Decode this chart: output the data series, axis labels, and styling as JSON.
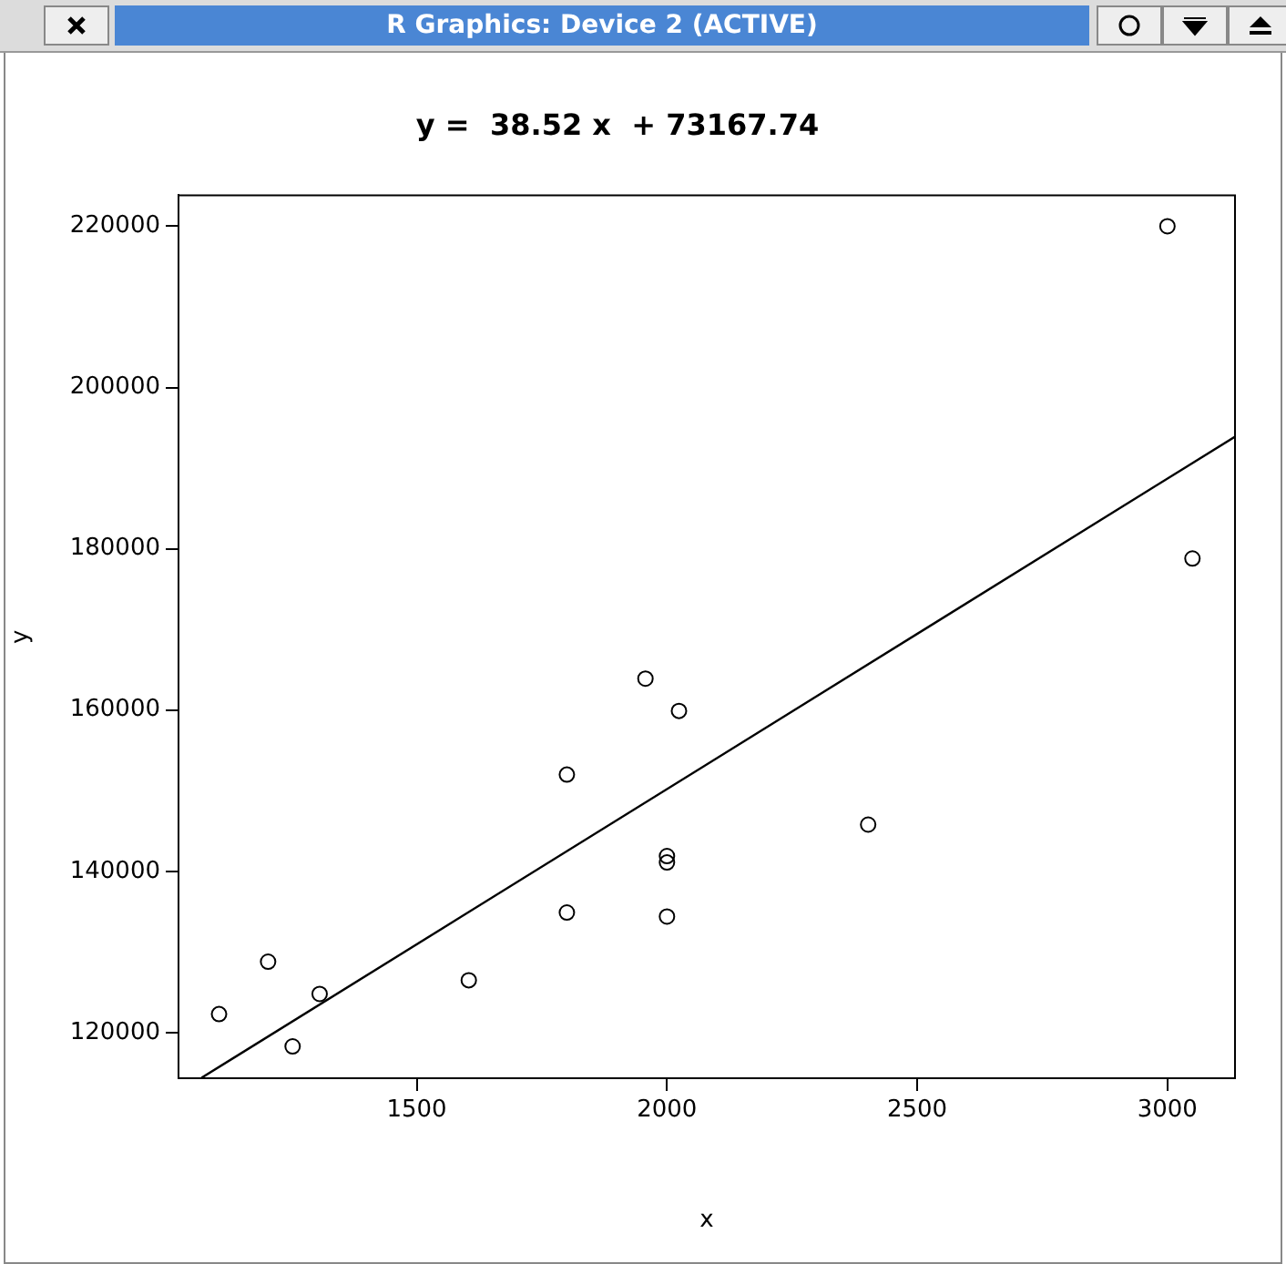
{
  "chart_data": {
    "type": "scatter",
    "title": "y =  38.52 x  + 73167.74",
    "xlabel": "x",
    "ylabel": "y",
    "annotations": [
      "R Graphics: Device 2 (ACTIVE)"
    ],
    "xlim": [
      1024,
      3135
    ],
    "ylim": [
      114349,
      223843
    ],
    "xticks": [
      1500,
      2000,
      2500,
      3000
    ],
    "yticks": [
      120000,
      140000,
      160000,
      180000,
      200000,
      220000
    ],
    "grid": false,
    "marker": "circle",
    "series": [
      {
        "color": "#000000",
        "x": [
          1105,
          1203,
          1252,
          1306,
          1604,
          1800,
          1800,
          1957,
          2024,
          2000,
          2000,
          2000,
          2402,
          3000,
          3050
        ],
        "values": [
          122300,
          128800,
          118300,
          124800,
          126500,
          134900,
          152000,
          163900,
          159900,
          141900,
          141100,
          134400,
          145800,
          220000,
          178800
        ]
      },
      {
        "type": "line",
        "marker": "none",
        "color": "#000000",
        "x": [
          1070,
          3135
        ],
        "values": [
          114400,
          193900
        ]
      }
    ]
  }
}
